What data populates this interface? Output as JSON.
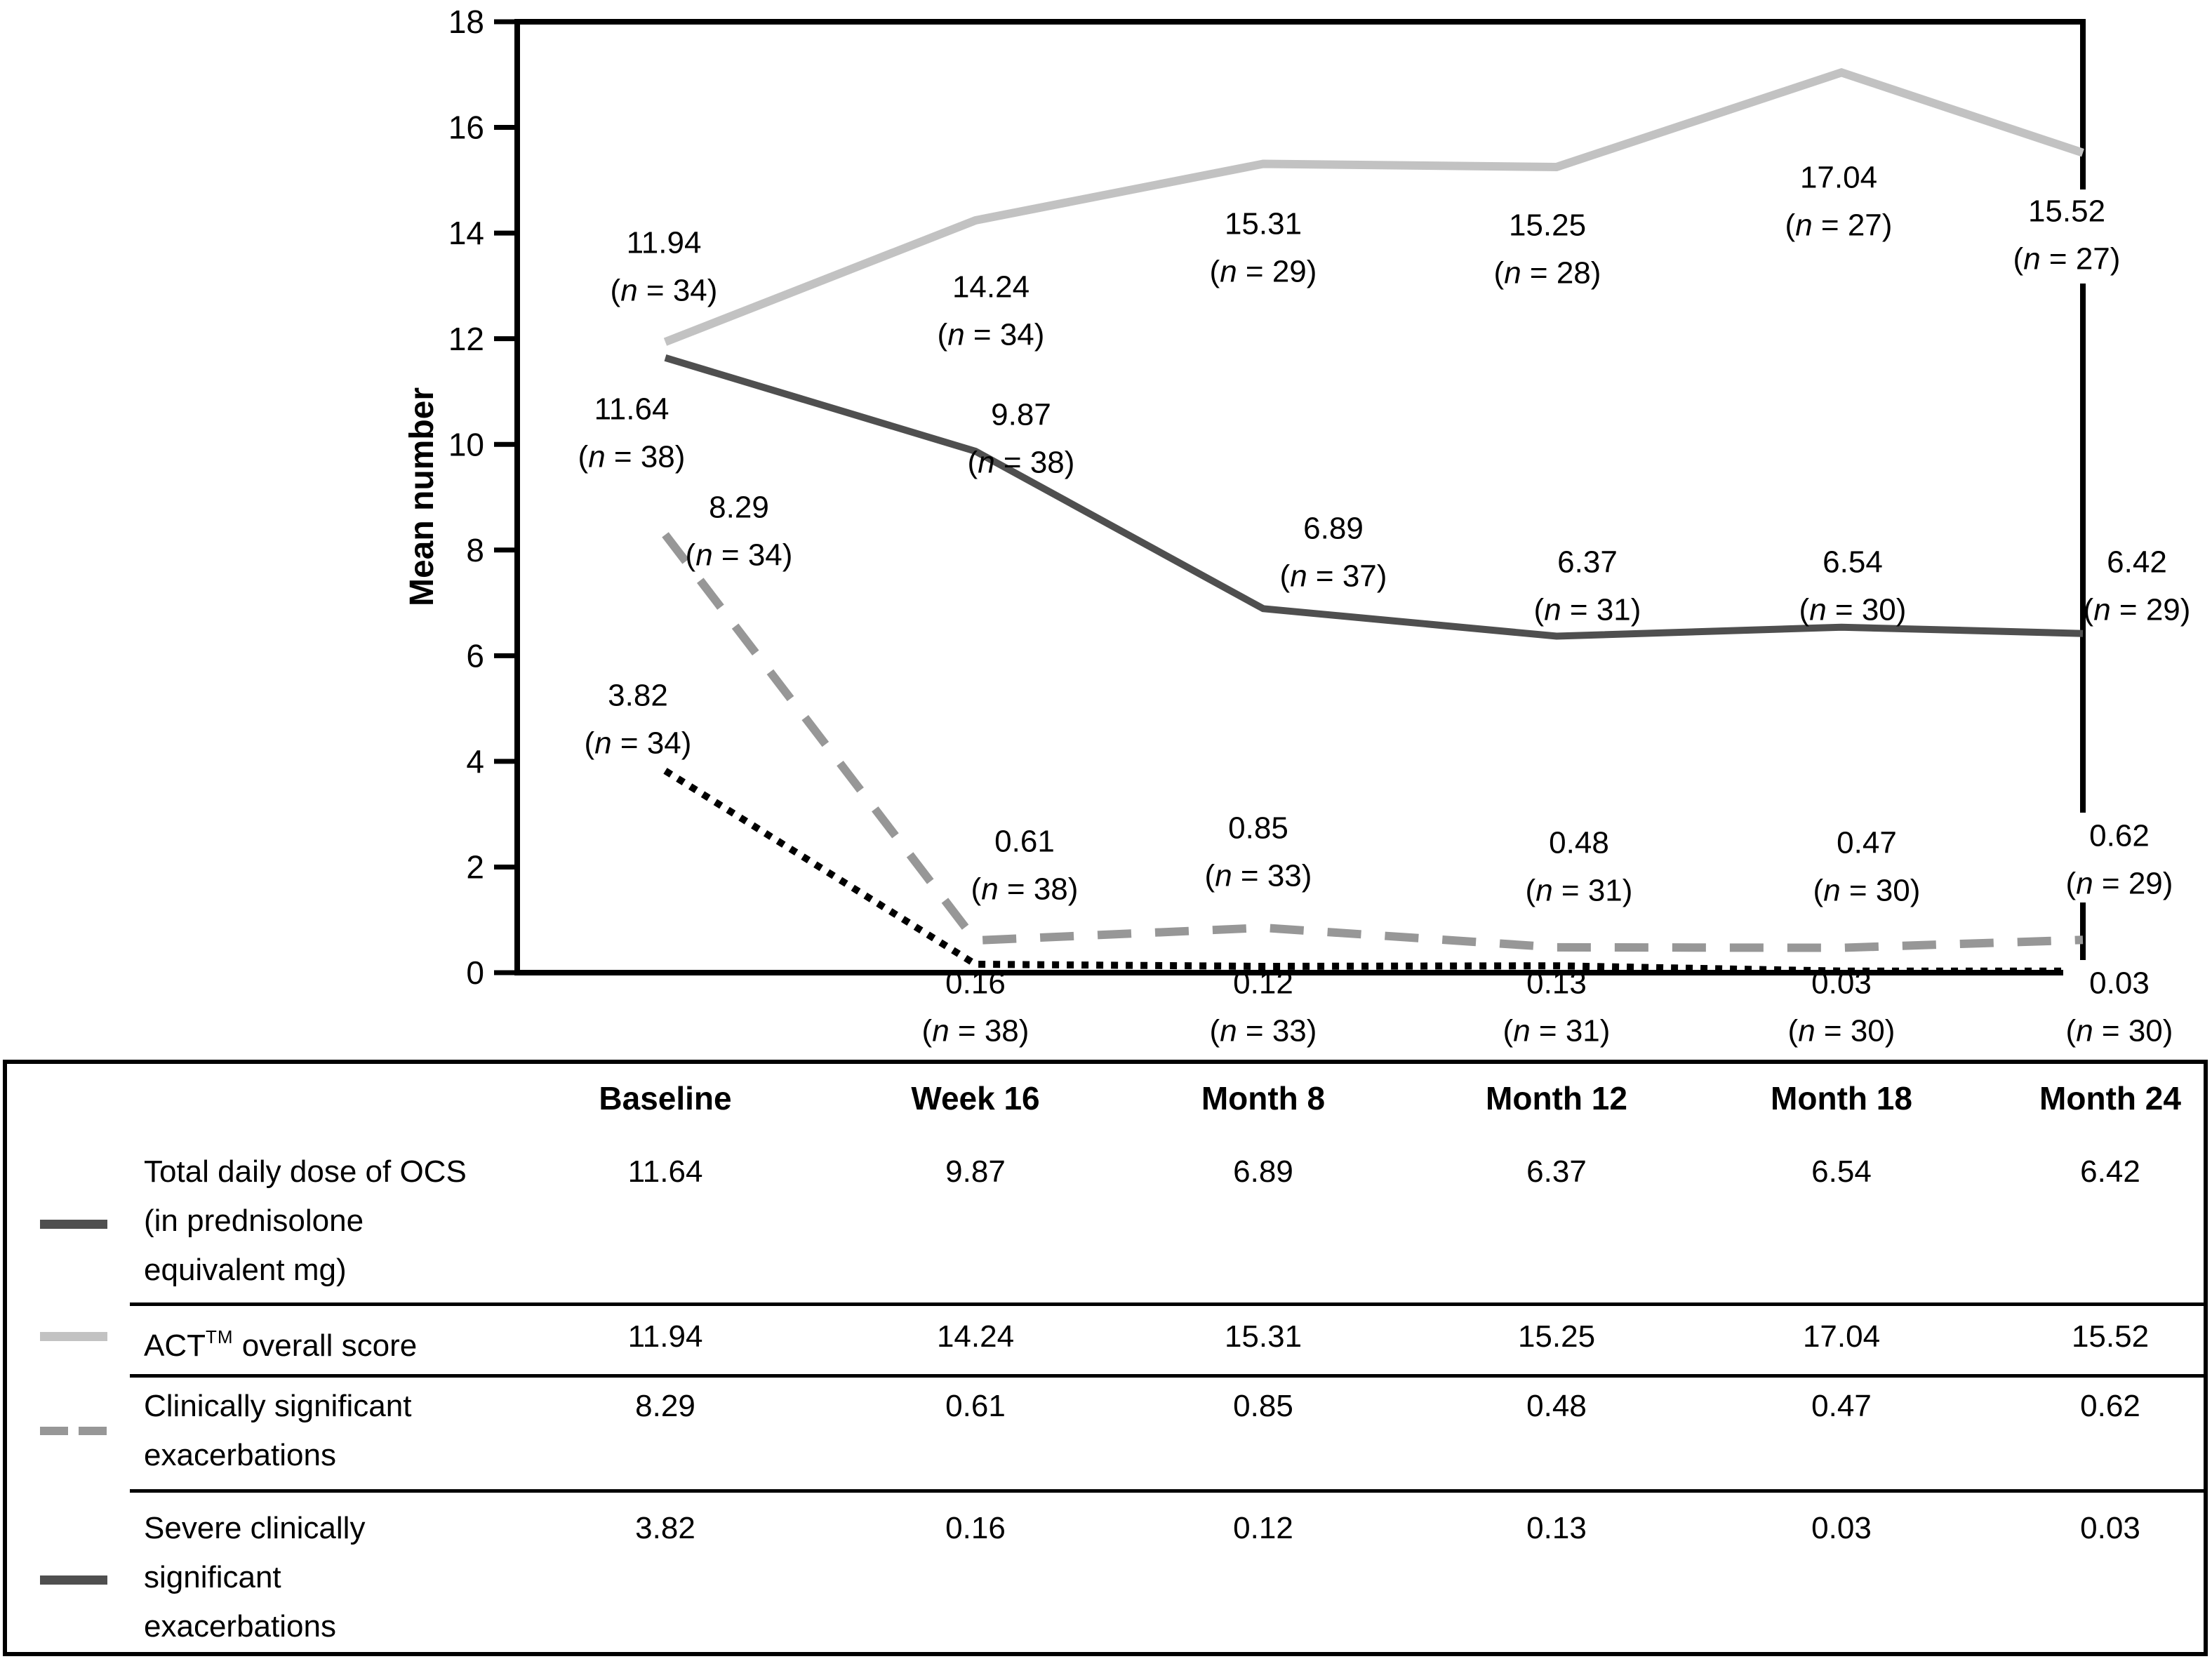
{
  "chart_data": {
    "type": "line",
    "title": "",
    "xlabel": "",
    "ylabel": "Mean number",
    "ylim": [
      0,
      18
    ],
    "yticks": [
      0,
      2,
      4,
      6,
      8,
      10,
      12,
      14,
      16,
      18
    ],
    "grid": false,
    "legend_position": "table-below",
    "categories": [
      "Baseline",
      "Week 16",
      "Month 8",
      "Month 12",
      "Month 18",
      "Month 24"
    ],
    "series": [
      {
        "name": "Total daily dose of OCS (in prednisolone equivalent mg)",
        "line_style": "solid",
        "color": "#4f4f4f",
        "values": [
          11.64,
          9.87,
          6.89,
          6.37,
          6.54,
          6.42
        ],
        "n": [
          38,
          38,
          37,
          31,
          30,
          29
        ]
      },
      {
        "name": "ACT™ overall score",
        "line_style": "solid",
        "color": "#c2c2c2",
        "values": [
          11.94,
          14.24,
          15.31,
          15.25,
          17.04,
          15.52
        ],
        "n": [
          34,
          34,
          29,
          28,
          27,
          27
        ]
      },
      {
        "name": "Clinically significant exacerbations",
        "line_style": "dashed",
        "color": "#979797",
        "values": [
          8.29,
          0.61,
          0.85,
          0.48,
          0.47,
          0.62
        ],
        "n": [
          34,
          38,
          33,
          31,
          30,
          29
        ]
      },
      {
        "name": "Severe clinically significant exacerbations",
        "line_style": "dotted",
        "color": "#000000",
        "values": [
          3.82,
          0.16,
          0.12,
          0.13,
          0.03,
          0.03
        ],
        "n": [
          34,
          38,
          33,
          31,
          30,
          30
        ]
      }
    ]
  },
  "table": {
    "headers": [
      "Baseline",
      "Week 16",
      "Month 8",
      "Month 12",
      "Month 18",
      "Month 24"
    ],
    "rows": [
      {
        "label_lines": [
          "Total daily dose of OCS",
          "(in prednisolone",
          "equivalent mg)"
        ],
        "swatch": "solid-dark",
        "values": [
          "11.64",
          "9.87",
          "6.89",
          "6.37",
          "6.54",
          "6.42"
        ]
      },
      {
        "label_lines": [
          "ACT™ overall score"
        ],
        "swatch": "solid-light",
        "values": [
          "11.94",
          "14.24",
          "15.31",
          "15.25",
          "17.04",
          "15.52"
        ]
      },
      {
        "label_lines": [
          "Clinically significant",
          "exacerbations"
        ],
        "swatch": "dashed-gray",
        "values": [
          "8.29",
          "0.61",
          "0.85",
          "0.48",
          "0.47",
          "0.62"
        ]
      },
      {
        "label_lines": [
          "Severe clinically",
          "significant",
          "exacerbations"
        ],
        "swatch": "solid-dark",
        "values": [
          "3.82",
          "0.16",
          "0.12",
          "0.13",
          "0.03",
          "0.03"
        ]
      }
    ]
  },
  "colors": {
    "line_dark": "#4f4f4f",
    "line_light": "#c2c2c2",
    "line_dashed": "#979797",
    "line_dotted": "#000000",
    "text": "#000000",
    "border": "#000000",
    "background": "#ffffff"
  }
}
